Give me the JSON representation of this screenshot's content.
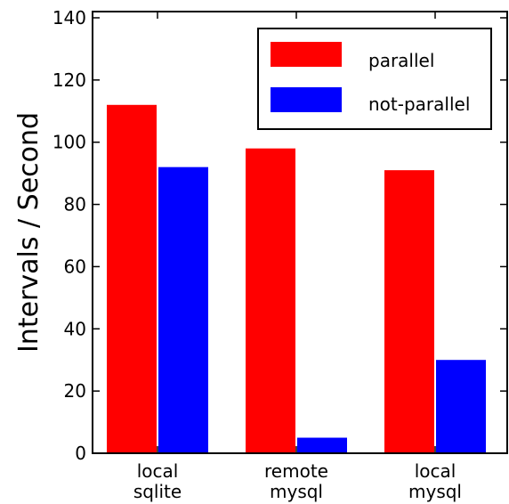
{
  "chart_data": {
    "type": "bar",
    "categories": [
      [
        "local",
        "sqlite"
      ],
      [
        "remote",
        "mysql"
      ],
      [
        "local",
        "mysql"
      ]
    ],
    "series": [
      {
        "name": "parallel",
        "color": "#ff0000",
        "values": [
          112,
          98,
          91
        ]
      },
      {
        "name": "not-parallel",
        "color": "#0000ff",
        "values": [
          92,
          5,
          30
        ]
      }
    ],
    "title": "",
    "xlabel": "",
    "ylabel": "Intervals / Second",
    "ylim": [
      0,
      142
    ],
    "yticks": [
      0,
      20,
      40,
      60,
      80,
      100,
      120,
      140
    ],
    "grid": false,
    "legend_position": "top-right"
  }
}
